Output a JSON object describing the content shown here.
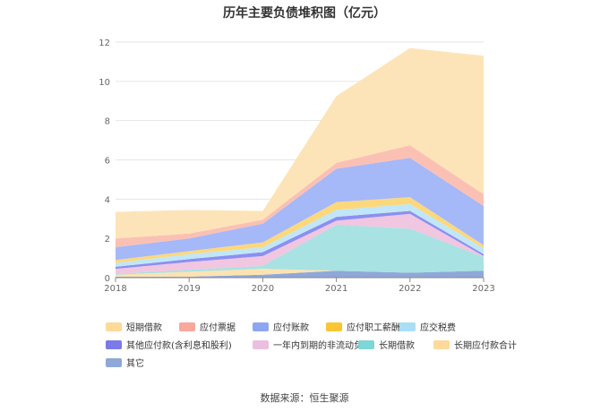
{
  "chart_data": {
    "type": "area",
    "stacked": true,
    "title": "历年主要负债堆积图（亿元）",
    "x": [
      "2018",
      "2019",
      "2020",
      "2021",
      "2022",
      "2023"
    ],
    "ylim": [
      0,
      12
    ],
    "yticks": [
      0,
      2,
      4,
      6,
      8,
      10,
      12
    ],
    "grid": true,
    "legend_position": "bottom",
    "series": [
      {
        "name": "其它",
        "color": "#8fa8d8",
        "values": [
          0.05,
          0.05,
          0.15,
          0.35,
          0.25,
          0.35
        ]
      },
      {
        "name": "长期应付款合计",
        "color": "#fde2b2",
        "values": [
          0.1,
          0.25,
          0.3,
          0.0,
          0.0,
          0.0
        ]
      },
      {
        "name": "长期借款",
        "color": "#a8e2e2",
        "values": [
          0.05,
          0.1,
          0.15,
          2.35,
          2.25,
          0.7
        ]
      },
      {
        "name": "一年内到期的非流动负债",
        "color": "#f0c6e0",
        "values": [
          0.25,
          0.4,
          0.5,
          0.2,
          0.75,
          0.05
        ]
      },
      {
        "name": "其他应付款(含利息和股利)",
        "color": "#8c8ff0",
        "values": [
          0.1,
          0.15,
          0.2,
          0.2,
          0.15,
          0.1
        ]
      },
      {
        "name": "应交税费",
        "color": "#c0e6f8",
        "values": [
          0.2,
          0.25,
          0.25,
          0.35,
          0.35,
          0.3
        ]
      },
      {
        "name": "应付职工薪酬",
        "color": "#fcd87c",
        "values": [
          0.15,
          0.15,
          0.25,
          0.4,
          0.35,
          0.15
        ]
      },
      {
        "name": "应付账款",
        "color": "#a5b8f8",
        "values": [
          0.65,
          0.65,
          0.95,
          1.7,
          2.0,
          2.0
        ]
      },
      {
        "name": "应付票据",
        "color": "#fbc0b4",
        "values": [
          0.45,
          0.25,
          0.2,
          0.3,
          0.65,
          0.6
        ]
      },
      {
        "name": "短期借款",
        "color": "#fde4b8",
        "values": [
          1.35,
          1.2,
          0.45,
          3.4,
          4.95,
          7.05
        ]
      }
    ],
    "legend_order": [
      "短期借款",
      "应付票据",
      "应付账款",
      "应付职工薪酬",
      "应交税费",
      "其他应付款(含利息和股利)",
      "一年内到期的非流动负债",
      "长期借款",
      "长期应付款合计",
      "其它"
    ],
    "legend_swatch_colors": [
      "#fdd99a",
      "#f8a89c",
      "#8ea6f2",
      "#fbc534",
      "#a9def5",
      "#7a7ae8",
      "#ebbfe0",
      "#7fd6d6",
      "#fdd99a",
      "#8fa8d8"
    ]
  },
  "source_text": "数据来源：恒生聚源"
}
